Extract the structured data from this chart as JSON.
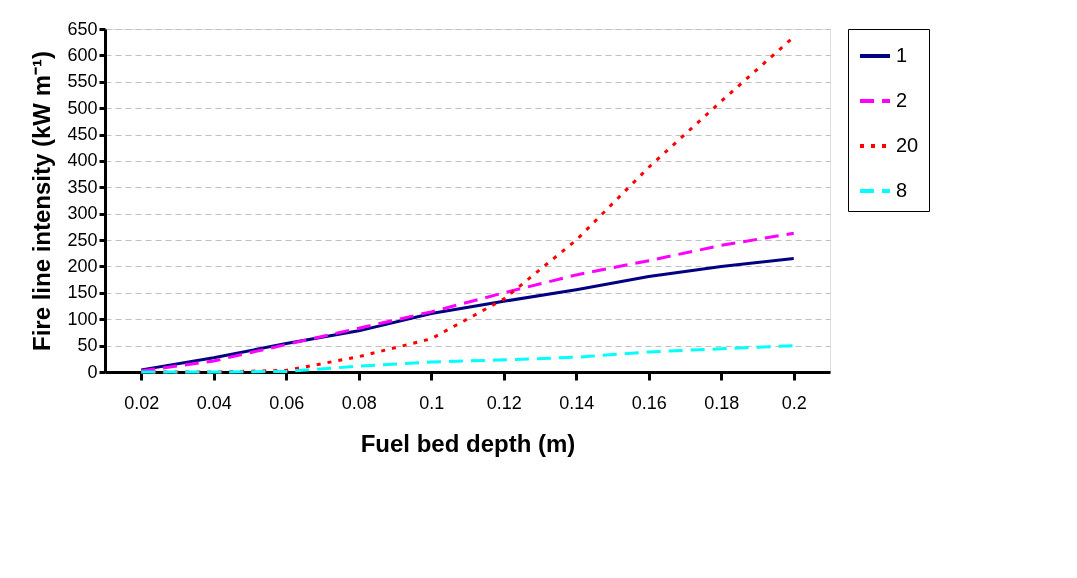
{
  "chart_data": {
    "type": "line",
    "xlabel": "Fuel bed depth (m)",
    "ylabel": "Fire line intensity (kW m⁻¹)",
    "categories": [
      "0.02",
      "0.04",
      "0.06",
      "0.08",
      "0.1",
      "0.12",
      "0.14",
      "0.16",
      "0.18",
      "0.2"
    ],
    "series": [
      {
        "name": "1",
        "color": "#000080",
        "line_style": "solid",
        "values": [
          4,
          27,
          54,
          78,
          111,
          134,
          156,
          181,
          200,
          215
        ]
      },
      {
        "name": "2",
        "color": "#ff00ff",
        "line_style": "dashed",
        "values": [
          2,
          21,
          52,
          83,
          114,
          150,
          184,
          211,
          240,
          263
        ]
      },
      {
        "name": "20",
        "color": "#ff0000",
        "line_style": "dotted",
        "values": [
          0,
          0,
          3,
          29,
          63,
          138,
          250,
          388,
          513,
          635
        ]
      },
      {
        "name": "8",
        "color": "#00ffff",
        "line_style": "dashed",
        "values": [
          0,
          0,
          1,
          11,
          19,
          23,
          28,
          38,
          44,
          50
        ]
      }
    ],
    "ylim": [
      0,
      650
    ],
    "yticks": [
      0,
      50,
      100,
      150,
      200,
      250,
      300,
      350,
      400,
      450,
      500,
      550,
      600,
      650
    ],
    "grid": "y",
    "legend": "right",
    "marker": "none"
  }
}
